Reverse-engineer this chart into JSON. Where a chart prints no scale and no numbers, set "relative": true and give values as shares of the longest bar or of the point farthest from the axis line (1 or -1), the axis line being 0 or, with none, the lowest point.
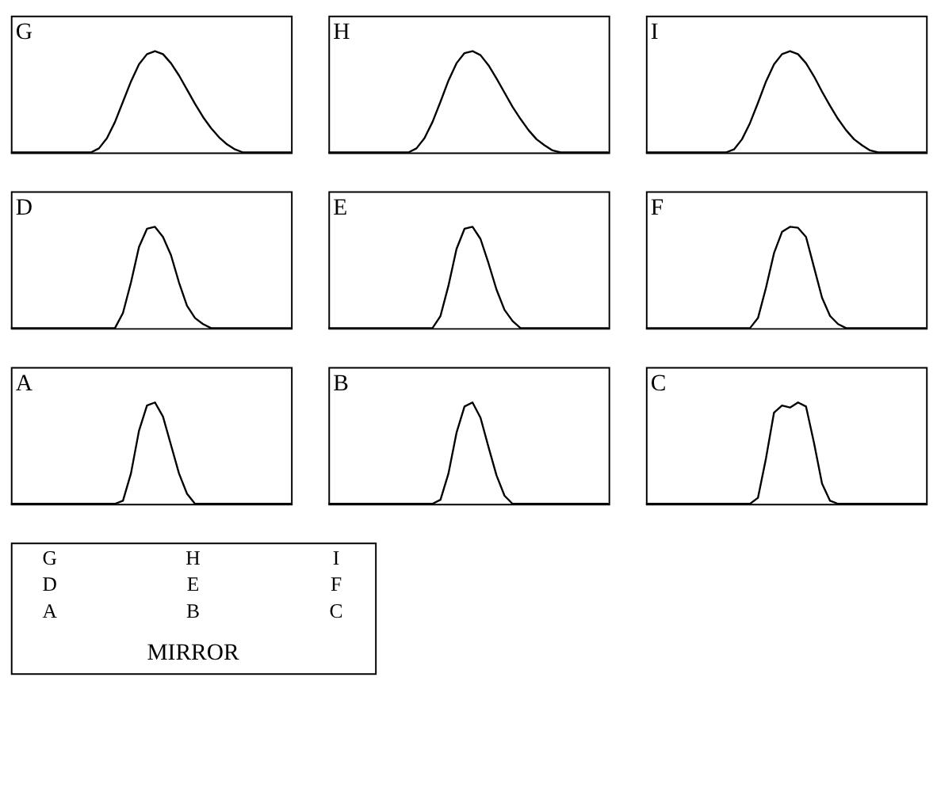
{
  "chart_data": [
    {
      "type": "line",
      "title": "G",
      "relative": true,
      "categories": [
        null,
        null,
        null,
        null,
        null,
        null,
        null,
        null,
        null,
        null,
        null,
        null,
        null,
        null,
        null,
        null,
        null,
        null,
        null,
        null,
        null,
        null,
        null,
        null,
        null,
        null,
        null,
        null,
        null,
        null,
        null,
        null,
        null,
        null,
        null,
        null
      ],
      "series": [
        {
          "color": "#000000",
          "values": [
            0,
            0,
            0,
            0,
            0,
            0,
            0,
            0,
            0,
            0,
            0,
            0.04,
            0.14,
            0.3,
            0.5,
            0.7,
            0.87,
            0.97,
            1.0,
            0.97,
            0.88,
            0.76,
            0.62,
            0.48,
            0.35,
            0.24,
            0.15,
            0.08,
            0.03,
            0,
            0,
            0,
            0,
            0,
            0,
            0
          ]
        }
      ]
    },
    {
      "type": "line",
      "title": "H",
      "relative": true,
      "categories": [
        null,
        null,
        null,
        null,
        null,
        null,
        null,
        null,
        null,
        null,
        null,
        null,
        null,
        null,
        null,
        null,
        null,
        null,
        null,
        null,
        null,
        null,
        null,
        null,
        null,
        null,
        null,
        null,
        null,
        null,
        null,
        null,
        null,
        null,
        null,
        null
      ],
      "series": [
        {
          "color": "#000000",
          "values": [
            0,
            0,
            0,
            0,
            0,
            0,
            0,
            0,
            0,
            0,
            0,
            0.04,
            0.14,
            0.3,
            0.5,
            0.71,
            0.88,
            0.98,
            1.0,
            0.96,
            0.86,
            0.73,
            0.59,
            0.45,
            0.33,
            0.22,
            0.13,
            0.07,
            0.02,
            0,
            0,
            0,
            0,
            0,
            0,
            0
          ]
        }
      ]
    },
    {
      "type": "line",
      "title": "I",
      "relative": true,
      "categories": [
        null,
        null,
        null,
        null,
        null,
        null,
        null,
        null,
        null,
        null,
        null,
        null,
        null,
        null,
        null,
        null,
        null,
        null,
        null,
        null,
        null,
        null,
        null,
        null,
        null,
        null,
        null,
        null,
        null,
        null,
        null,
        null,
        null,
        null,
        null,
        null
      ],
      "series": [
        {
          "color": "#000000",
          "values": [
            0,
            0,
            0,
            0,
            0,
            0,
            0,
            0,
            0,
            0,
            0,
            0.03,
            0.13,
            0.29,
            0.49,
            0.7,
            0.87,
            0.97,
            1.0,
            0.97,
            0.88,
            0.75,
            0.6,
            0.46,
            0.33,
            0.22,
            0.13,
            0.07,
            0.02,
            0,
            0,
            0,
            0,
            0,
            0,
            0
          ]
        }
      ]
    },
    {
      "type": "line",
      "title": "D",
      "relative": true,
      "categories": [
        null,
        null,
        null,
        null,
        null,
        null,
        null,
        null,
        null,
        null,
        null,
        null,
        null,
        null,
        null,
        null,
        null,
        null,
        null,
        null,
        null,
        null,
        null,
        null,
        null,
        null,
        null,
        null,
        null,
        null,
        null,
        null,
        null,
        null,
        null,
        null
      ],
      "series": [
        {
          "color": "#000000",
          "values": [
            0,
            0,
            0,
            0,
            0,
            0,
            0,
            0,
            0,
            0,
            0,
            0,
            0,
            0,
            0.15,
            0.45,
            0.8,
            0.98,
            1.0,
            0.9,
            0.72,
            0.45,
            0.22,
            0.1,
            0.04,
            0,
            0,
            0,
            0,
            0,
            0,
            0,
            0,
            0,
            0,
            0
          ]
        }
      ]
    },
    {
      "type": "line",
      "title": "E",
      "relative": true,
      "categories": [
        null,
        null,
        null,
        null,
        null,
        null,
        null,
        null,
        null,
        null,
        null,
        null,
        null,
        null,
        null,
        null,
        null,
        null,
        null,
        null,
        null,
        null,
        null,
        null,
        null,
        null,
        null,
        null,
        null,
        null,
        null,
        null,
        null,
        null,
        null,
        null
      ],
      "series": [
        {
          "color": "#000000",
          "values": [
            0,
            0,
            0,
            0,
            0,
            0,
            0,
            0,
            0,
            0,
            0,
            0,
            0,
            0,
            0.12,
            0.42,
            0.78,
            0.98,
            1.0,
            0.88,
            0.64,
            0.38,
            0.18,
            0.07,
            0,
            0,
            0,
            0,
            0,
            0,
            0,
            0,
            0,
            0,
            0,
            0
          ]
        }
      ]
    },
    {
      "type": "line",
      "title": "F",
      "relative": true,
      "categories": [
        null,
        null,
        null,
        null,
        null,
        null,
        null,
        null,
        null,
        null,
        null,
        null,
        null,
        null,
        null,
        null,
        null,
        null,
        null,
        null,
        null,
        null,
        null,
        null,
        null,
        null,
        null,
        null,
        null,
        null,
        null,
        null,
        null,
        null,
        null,
        null
      ],
      "series": [
        {
          "color": "#000000",
          "values": [
            0,
            0,
            0,
            0,
            0,
            0,
            0,
            0,
            0,
            0,
            0,
            0,
            0,
            0,
            0.1,
            0.4,
            0.74,
            0.95,
            1.0,
            0.99,
            0.9,
            0.6,
            0.3,
            0.12,
            0.04,
            0,
            0,
            0,
            0,
            0,
            0,
            0,
            0,
            0,
            0,
            0
          ]
        }
      ]
    },
    {
      "type": "line",
      "title": "A",
      "relative": true,
      "categories": [
        null,
        null,
        null,
        null,
        null,
        null,
        null,
        null,
        null,
        null,
        null,
        null,
        null,
        null,
        null,
        null,
        null,
        null,
        null,
        null,
        null,
        null,
        null,
        null,
        null,
        null,
        null,
        null,
        null,
        null,
        null,
        null,
        null,
        null,
        null,
        null
      ],
      "series": [
        {
          "color": "#000000",
          "values": [
            0,
            0,
            0,
            0,
            0,
            0,
            0,
            0,
            0,
            0,
            0,
            0,
            0,
            0,
            0.03,
            0.3,
            0.72,
            0.97,
            1.0,
            0.86,
            0.58,
            0.3,
            0.1,
            0,
            0,
            0,
            0,
            0,
            0,
            0,
            0,
            0,
            0,
            0,
            0,
            0
          ]
        }
      ]
    },
    {
      "type": "line",
      "title": "B",
      "relative": true,
      "categories": [
        null,
        null,
        null,
        null,
        null,
        null,
        null,
        null,
        null,
        null,
        null,
        null,
        null,
        null,
        null,
        null,
        null,
        null,
        null,
        null,
        null,
        null,
        null,
        null,
        null,
        null,
        null,
        null,
        null,
        null,
        null,
        null,
        null,
        null,
        null,
        null
      ],
      "series": [
        {
          "color": "#000000",
          "values": [
            0,
            0,
            0,
            0,
            0,
            0,
            0,
            0,
            0,
            0,
            0,
            0,
            0,
            0,
            0.04,
            0.3,
            0.7,
            0.96,
            1.0,
            0.85,
            0.56,
            0.28,
            0.08,
            0,
            0,
            0,
            0,
            0,
            0,
            0,
            0,
            0,
            0,
            0,
            0,
            0
          ]
        }
      ]
    },
    {
      "type": "line",
      "title": "C",
      "relative": true,
      "categories": [
        null,
        null,
        null,
        null,
        null,
        null,
        null,
        null,
        null,
        null,
        null,
        null,
        null,
        null,
        null,
        null,
        null,
        null,
        null,
        null,
        null,
        null,
        null,
        null,
        null,
        null,
        null,
        null,
        null,
        null,
        null,
        null,
        null,
        null,
        null,
        null
      ],
      "series": [
        {
          "color": "#000000",
          "values": [
            0,
            0,
            0,
            0,
            0,
            0,
            0,
            0,
            0,
            0,
            0,
            0,
            0,
            0,
            0.06,
            0.45,
            0.9,
            0.97,
            0.95,
            1.0,
            0.96,
            0.6,
            0.2,
            0.03,
            0,
            0,
            0,
            0,
            0,
            0,
            0,
            0,
            0,
            0,
            0,
            0
          ]
        }
      ]
    },
    {
      "type": "other",
      "annotations": [
        "G",
        "H",
        "I",
        "D",
        "E",
        "F",
        "A",
        "B",
        "C",
        "MIRROR"
      ]
    }
  ]
}
